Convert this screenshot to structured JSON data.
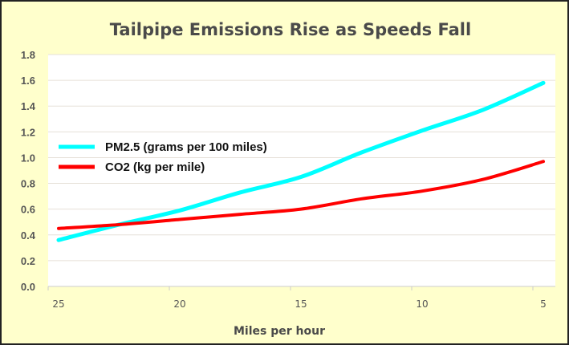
{
  "chart_data": {
    "type": "line",
    "title": "Tailpipe Emissions Rise as Speeds Fall",
    "xlabel": "Miles per hour",
    "ylabel": "",
    "x": [
      25,
      22.5,
      20,
      17.5,
      15,
      12.5,
      10,
      7.5,
      5
    ],
    "x_ticks": [
      "25",
      "20",
      "15",
      "10",
      "5"
    ],
    "x_tick_values": [
      25,
      20,
      15,
      10,
      5
    ],
    "x_reversed": true,
    "xlim": [
      25,
      5
    ],
    "ylim": [
      0,
      1.8
    ],
    "y_ticks": [
      "0.0",
      "0.2",
      "0.4",
      "0.6",
      "0.8",
      "1.0",
      "1.2",
      "1.4",
      "1.6",
      "1.8"
    ],
    "grid": true,
    "legend_position": "left-middle",
    "series": [
      {
        "name": "PM2.5 (grams per 100 miles)",
        "color": "#00FFFF",
        "values": [
          0.36,
          0.48,
          0.59,
          0.73,
          0.85,
          1.04,
          1.21,
          1.37,
          1.58
        ]
      },
      {
        "name": "CO2 (kg per mile)",
        "color": "#FF0000",
        "values": [
          0.45,
          0.48,
          0.52,
          0.56,
          0.6,
          0.68,
          0.74,
          0.83,
          0.97
        ]
      }
    ],
    "background_color": "#FFFFCC"
  }
}
